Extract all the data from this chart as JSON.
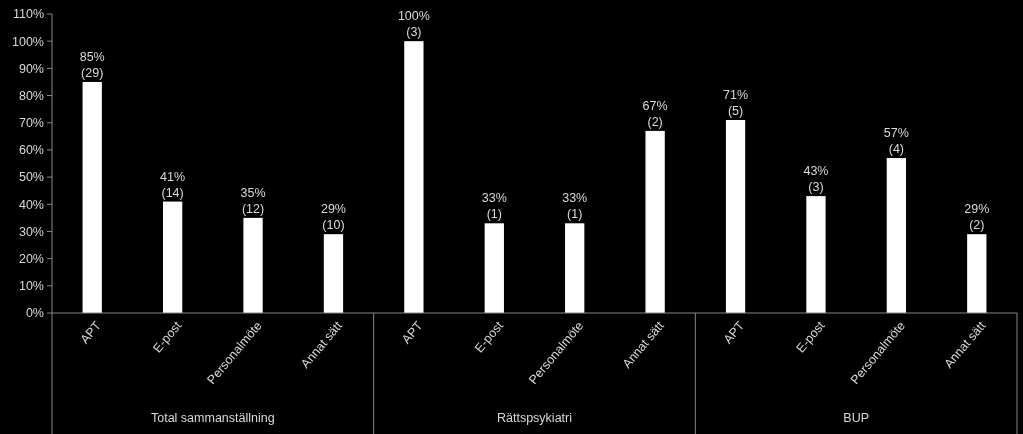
{
  "chart_data": {
    "type": "bar",
    "categories": [
      "APT",
      "E-post",
      "Personalmöte",
      "Annat sätt",
      "APT",
      "E-post",
      "Personalmöte",
      "Annat sätt",
      "APT",
      "E-post",
      "Personalmöte",
      "Annat sätt"
    ],
    "values": [
      85,
      41,
      35,
      29,
      100,
      33,
      33,
      67,
      71,
      43,
      57,
      29
    ],
    "value_labels": [
      "85%\n(29)",
      "41%\n(14)",
      "35%\n(12)",
      "29%\n(10)",
      "100%\n(3)",
      "33%\n(1)",
      "33%\n(1)",
      "67%\n(2)",
      "71%\n(5)",
      "43%\n(3)",
      "57%\n(4)",
      "29%\n(2)"
    ],
    "color": "#ffffff",
    "ylim": [
      0,
      110
    ],
    "yticks": [
      {
        "value": 0,
        "label": "0%"
      },
      {
        "value": 10,
        "label": "10%"
      },
      {
        "value": 20,
        "label": "20%"
      },
      {
        "value": 30,
        "label": "30%"
      },
      {
        "value": 40,
        "label": "40%"
      },
      {
        "value": 50,
        "label": "50%"
      },
      {
        "value": 60,
        "label": "60%"
      },
      {
        "value": 70,
        "label": "70%"
      },
      {
        "value": 80,
        "label": "80%"
      },
      {
        "value": 90,
        "label": "90%"
      },
      {
        "value": 100,
        "label": "100%"
      },
      {
        "value": 110,
        "label": "110%"
      }
    ],
    "annotations": [
      "Total sammanställning",
      "Rättspsykiatri",
      "BUP"
    ],
    "grid": false
  }
}
